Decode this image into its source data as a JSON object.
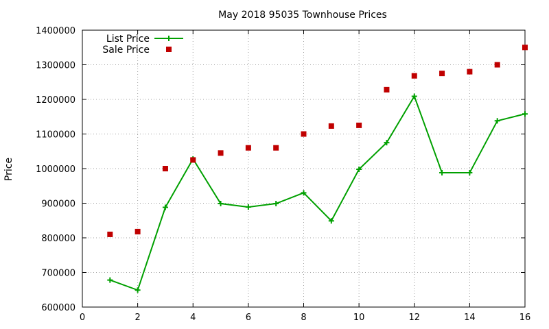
{
  "chart_data": {
    "type": "scatter",
    "title": "May 2018 95035 Townhouse Prices",
    "xlabel": "",
    "ylabel": "Price",
    "xlim": [
      0,
      16
    ],
    "ylim": [
      600000,
      1400000
    ],
    "x_ticks": [
      0,
      2,
      4,
      6,
      8,
      10,
      12,
      14,
      16
    ],
    "y_ticks": [
      600000,
      700000,
      800000,
      900000,
      1000000,
      1100000,
      1200000,
      1300000,
      1400000
    ],
    "grid": true,
    "legend": "top-left",
    "series": [
      {
        "name": "List Price",
        "style": "linespoints",
        "marker": "plus",
        "color": "#00a000",
        "x": [
          1,
          2,
          3,
          4,
          5,
          6,
          7,
          8,
          9,
          10,
          11,
          12,
          13,
          14,
          15,
          16
        ],
        "values": [
          678000,
          649000,
          888000,
          1028000,
          899000,
          889000,
          899000,
          930000,
          849000,
          998000,
          1075000,
          1209000,
          988000,
          988000,
          1138000,
          1158000
        ]
      },
      {
        "name": "Sale Price",
        "style": "points",
        "marker": "square",
        "color": "#c00000",
        "x": [
          1,
          2,
          3,
          4,
          5,
          6,
          7,
          8,
          9,
          10,
          11,
          12,
          13,
          14,
          15,
          16
        ],
        "values": [
          810000,
          818000,
          1000000,
          1025000,
          1045000,
          1060000,
          1060000,
          1100000,
          1123000,
          1125000,
          1228000,
          1268000,
          1275000,
          1280000,
          1300000,
          1350000
        ]
      }
    ]
  }
}
